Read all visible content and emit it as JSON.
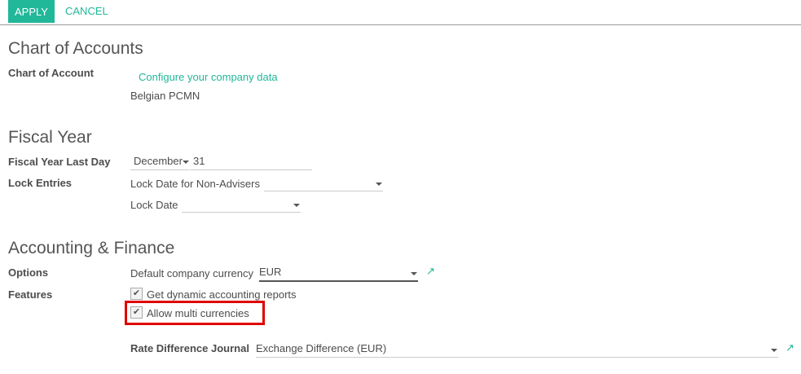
{
  "toolbar": {
    "apply": "APPLY",
    "cancel": "CANCEL"
  },
  "chart": {
    "title": "Chart of Accounts",
    "label": "Chart of Account",
    "configure_link": "Configure your company data",
    "value": "Belgian PCMN"
  },
  "fiscal": {
    "title": "Fiscal Year",
    "last_day_label": "Fiscal Year Last Day",
    "month": "December",
    "day": "31",
    "lock_label": "Lock Entries",
    "lock_non_advisers_label": "Lock Date for Non-Advisers",
    "lock_non_advisers_value": "",
    "lock_date_label": "Lock Date",
    "lock_date_value": ""
  },
  "accounting": {
    "title": "Accounting & Finance",
    "options_label": "Options",
    "currency_label": "Default company currency",
    "currency_value": "EUR",
    "features_label": "Features",
    "feature1": "Get dynamic accounting reports",
    "feature1_checked": true,
    "feature2": "Allow multi currencies",
    "feature2_checked": true,
    "rate_label": "Rate Difference Journal",
    "rate_value": "Exchange Difference (EUR)"
  },
  "colors": {
    "accent": "#21b799",
    "highlight": "#e00000"
  }
}
